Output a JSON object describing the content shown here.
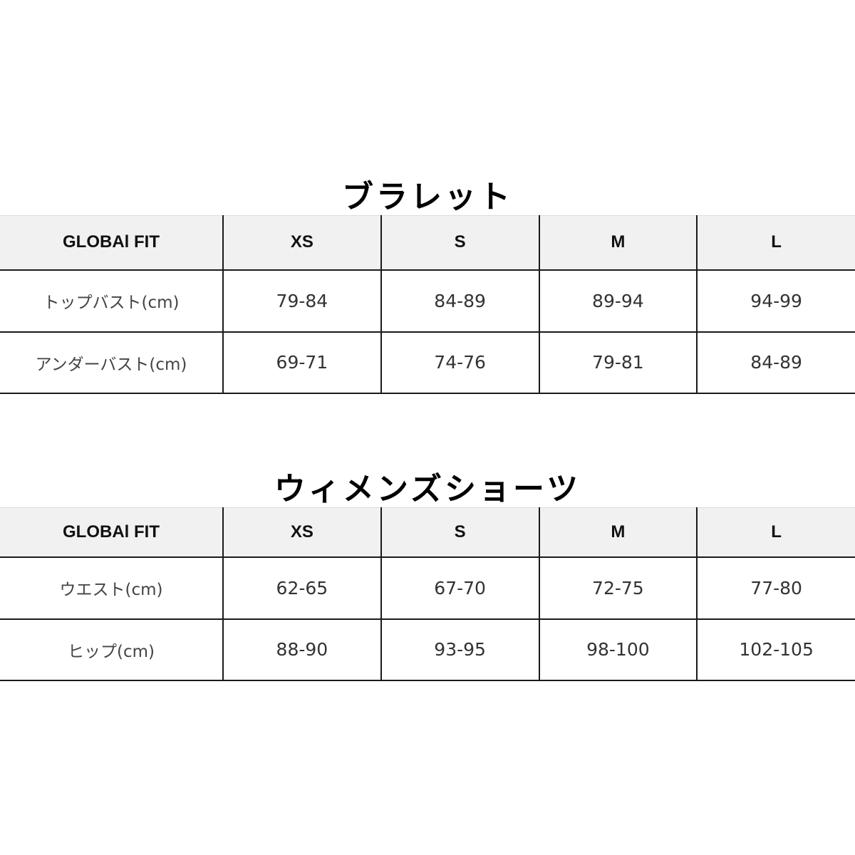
{
  "tables": [
    {
      "title": "ブラレット",
      "headers": [
        "GLOBAl FIT",
        "XS",
        "S",
        "M",
        "L"
      ],
      "rows": [
        [
          "トップバスト(cm)",
          "79-84",
          "84-89",
          "89-94",
          "94-99"
        ],
        [
          "アンダーバスト(cm)",
          "69-71",
          "74-76",
          "79-81",
          "84-89"
        ]
      ]
    },
    {
      "title": "ウィメンズショーツ",
      "headers": [
        "GLOBAl FIT",
        "XS",
        "S",
        "M",
        "L"
      ],
      "rows": [
        [
          "ウエスト(cm)",
          "62-65",
          "67-70",
          "72-75",
          "77-80"
        ],
        [
          "ヒップ(cm)",
          "88-90",
          "93-95",
          "98-100",
          "102-105"
        ]
      ]
    }
  ]
}
